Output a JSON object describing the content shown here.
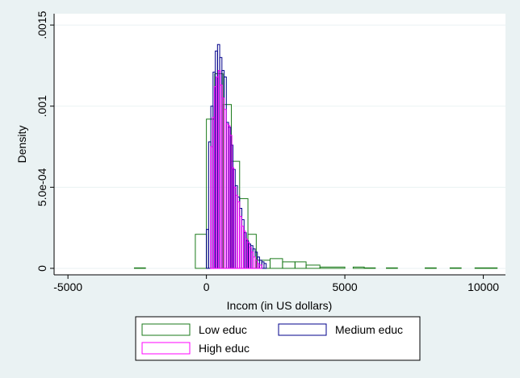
{
  "chart_data": {
    "type": "histogram",
    "title": "",
    "xlabel": "Incom (in US dollars)",
    "ylabel": "Density",
    "xlim": [
      -5500,
      10800
    ],
    "ylim": [
      -4e-05,
      0.00157
    ],
    "x_ticks": [
      {
        "value": -5000,
        "label": "-5000"
      },
      {
        "value": 0,
        "label": "0"
      },
      {
        "value": 5000,
        "label": "5000"
      },
      {
        "value": 10000,
        "label": "10000"
      }
    ],
    "y_ticks": [
      {
        "value": 0,
        "label": "0"
      },
      {
        "value": 0.0005,
        "label": "5.0e-04"
      },
      {
        "value": 0.001,
        "label": ".001"
      },
      {
        "value": 0.0015,
        "label": ".0015"
      }
    ],
    "grid": "horizontal",
    "legend_position": "bottom",
    "series": [
      {
        "name": "Low educ",
        "color": "#1a7a1a",
        "bins": [
          [
            -2600,
            -2200,
            3e-06
          ],
          [
            -400,
            0,
            0.00021
          ],
          [
            0,
            300,
            0.00092
          ],
          [
            300,
            600,
            0.0012
          ],
          [
            600,
            900,
            0.00101
          ],
          [
            900,
            1200,
            0.00066
          ],
          [
            1200,
            1500,
            0.00043
          ],
          [
            1500,
            1800,
            0.00021
          ],
          [
            1800,
            2300,
            5e-05
          ],
          [
            2300,
            2750,
            6e-05
          ],
          [
            2750,
            3200,
            4e-05
          ],
          [
            3200,
            3600,
            4e-05
          ],
          [
            3600,
            4100,
            2e-05
          ],
          [
            4100,
            5000,
            8e-06
          ],
          [
            5300,
            5700,
            8e-06
          ],
          [
            5700,
            6100,
            3e-06
          ],
          [
            6500,
            6900,
            3e-06
          ],
          [
            7900,
            8300,
            3e-06
          ],
          [
            8800,
            9200,
            3e-06
          ],
          [
            9700,
            10500,
            3e-06
          ]
        ]
      },
      {
        "name": "Medium educ",
        "color": "#00008b",
        "bins": [
          [
            0,
            80,
            0.00024
          ],
          [
            80,
            160,
            0.00078
          ],
          [
            160,
            240,
            0.001
          ],
          [
            240,
            320,
            0.00121
          ],
          [
            320,
            400,
            0.00134
          ],
          [
            400,
            480,
            0.00138
          ],
          [
            480,
            560,
            0.0013
          ],
          [
            560,
            640,
            0.00122
          ],
          [
            640,
            720,
            0.00118
          ],
          [
            720,
            800,
            0.0009
          ],
          [
            800,
            880,
            0.00087
          ],
          [
            880,
            960,
            0.00076
          ],
          [
            960,
            1040,
            0.00061
          ],
          [
            1040,
            1120,
            0.00051
          ],
          [
            1120,
            1200,
            0.00044
          ],
          [
            1200,
            1280,
            0.00037
          ],
          [
            1280,
            1360,
            0.0003
          ],
          [
            1360,
            1440,
            0.00022
          ],
          [
            1440,
            1520,
            0.00017
          ],
          [
            1520,
            1600,
            0.00015
          ],
          [
            1600,
            1680,
            0.00014
          ],
          [
            1680,
            1760,
            0.00012
          ],
          [
            1760,
            1840,
            0.0001
          ],
          [
            1840,
            1920,
            7e-05
          ],
          [
            1920,
            2000,
            5e-05
          ],
          [
            2000,
            2080,
            4e-05
          ],
          [
            2080,
            2160,
            3e-05
          ]
        ]
      },
      {
        "name": "High educ",
        "color": "#ff00ff",
        "bins": [
          [
            150,
            220,
            0.00075
          ],
          [
            220,
            290,
            0.00093
          ],
          [
            290,
            360,
            0.00112
          ],
          [
            360,
            430,
            0.00118
          ],
          [
            430,
            500,
            0.00122
          ],
          [
            500,
            570,
            0.00113
          ],
          [
            570,
            640,
            0.00105
          ],
          [
            640,
            710,
            0.00098
          ],
          [
            710,
            780,
            0.00089
          ],
          [
            780,
            850,
            0.00088
          ],
          [
            850,
            920,
            0.00082
          ],
          [
            920,
            990,
            0.00062
          ],
          [
            990,
            1060,
            0.0005
          ],
          [
            1060,
            1130,
            0.00045
          ],
          [
            1130,
            1200,
            0.00041
          ],
          [
            1200,
            1270,
            0.00032
          ],
          [
            1270,
            1340,
            0.00026
          ],
          [
            1340,
            1410,
            0.00023
          ],
          [
            1410,
            1480,
            0.00018
          ],
          [
            1480,
            1550,
            0.00016
          ],
          [
            1550,
            1620,
            0.00013
          ],
          [
            1620,
            1690,
            0.0001
          ],
          [
            1690,
            1760,
            7e-05
          ],
          [
            1760,
            1830,
            5e-05
          ],
          [
            1830,
            1900,
            3e-05
          ],
          [
            1900,
            2000,
            2e-05
          ]
        ]
      }
    ]
  }
}
